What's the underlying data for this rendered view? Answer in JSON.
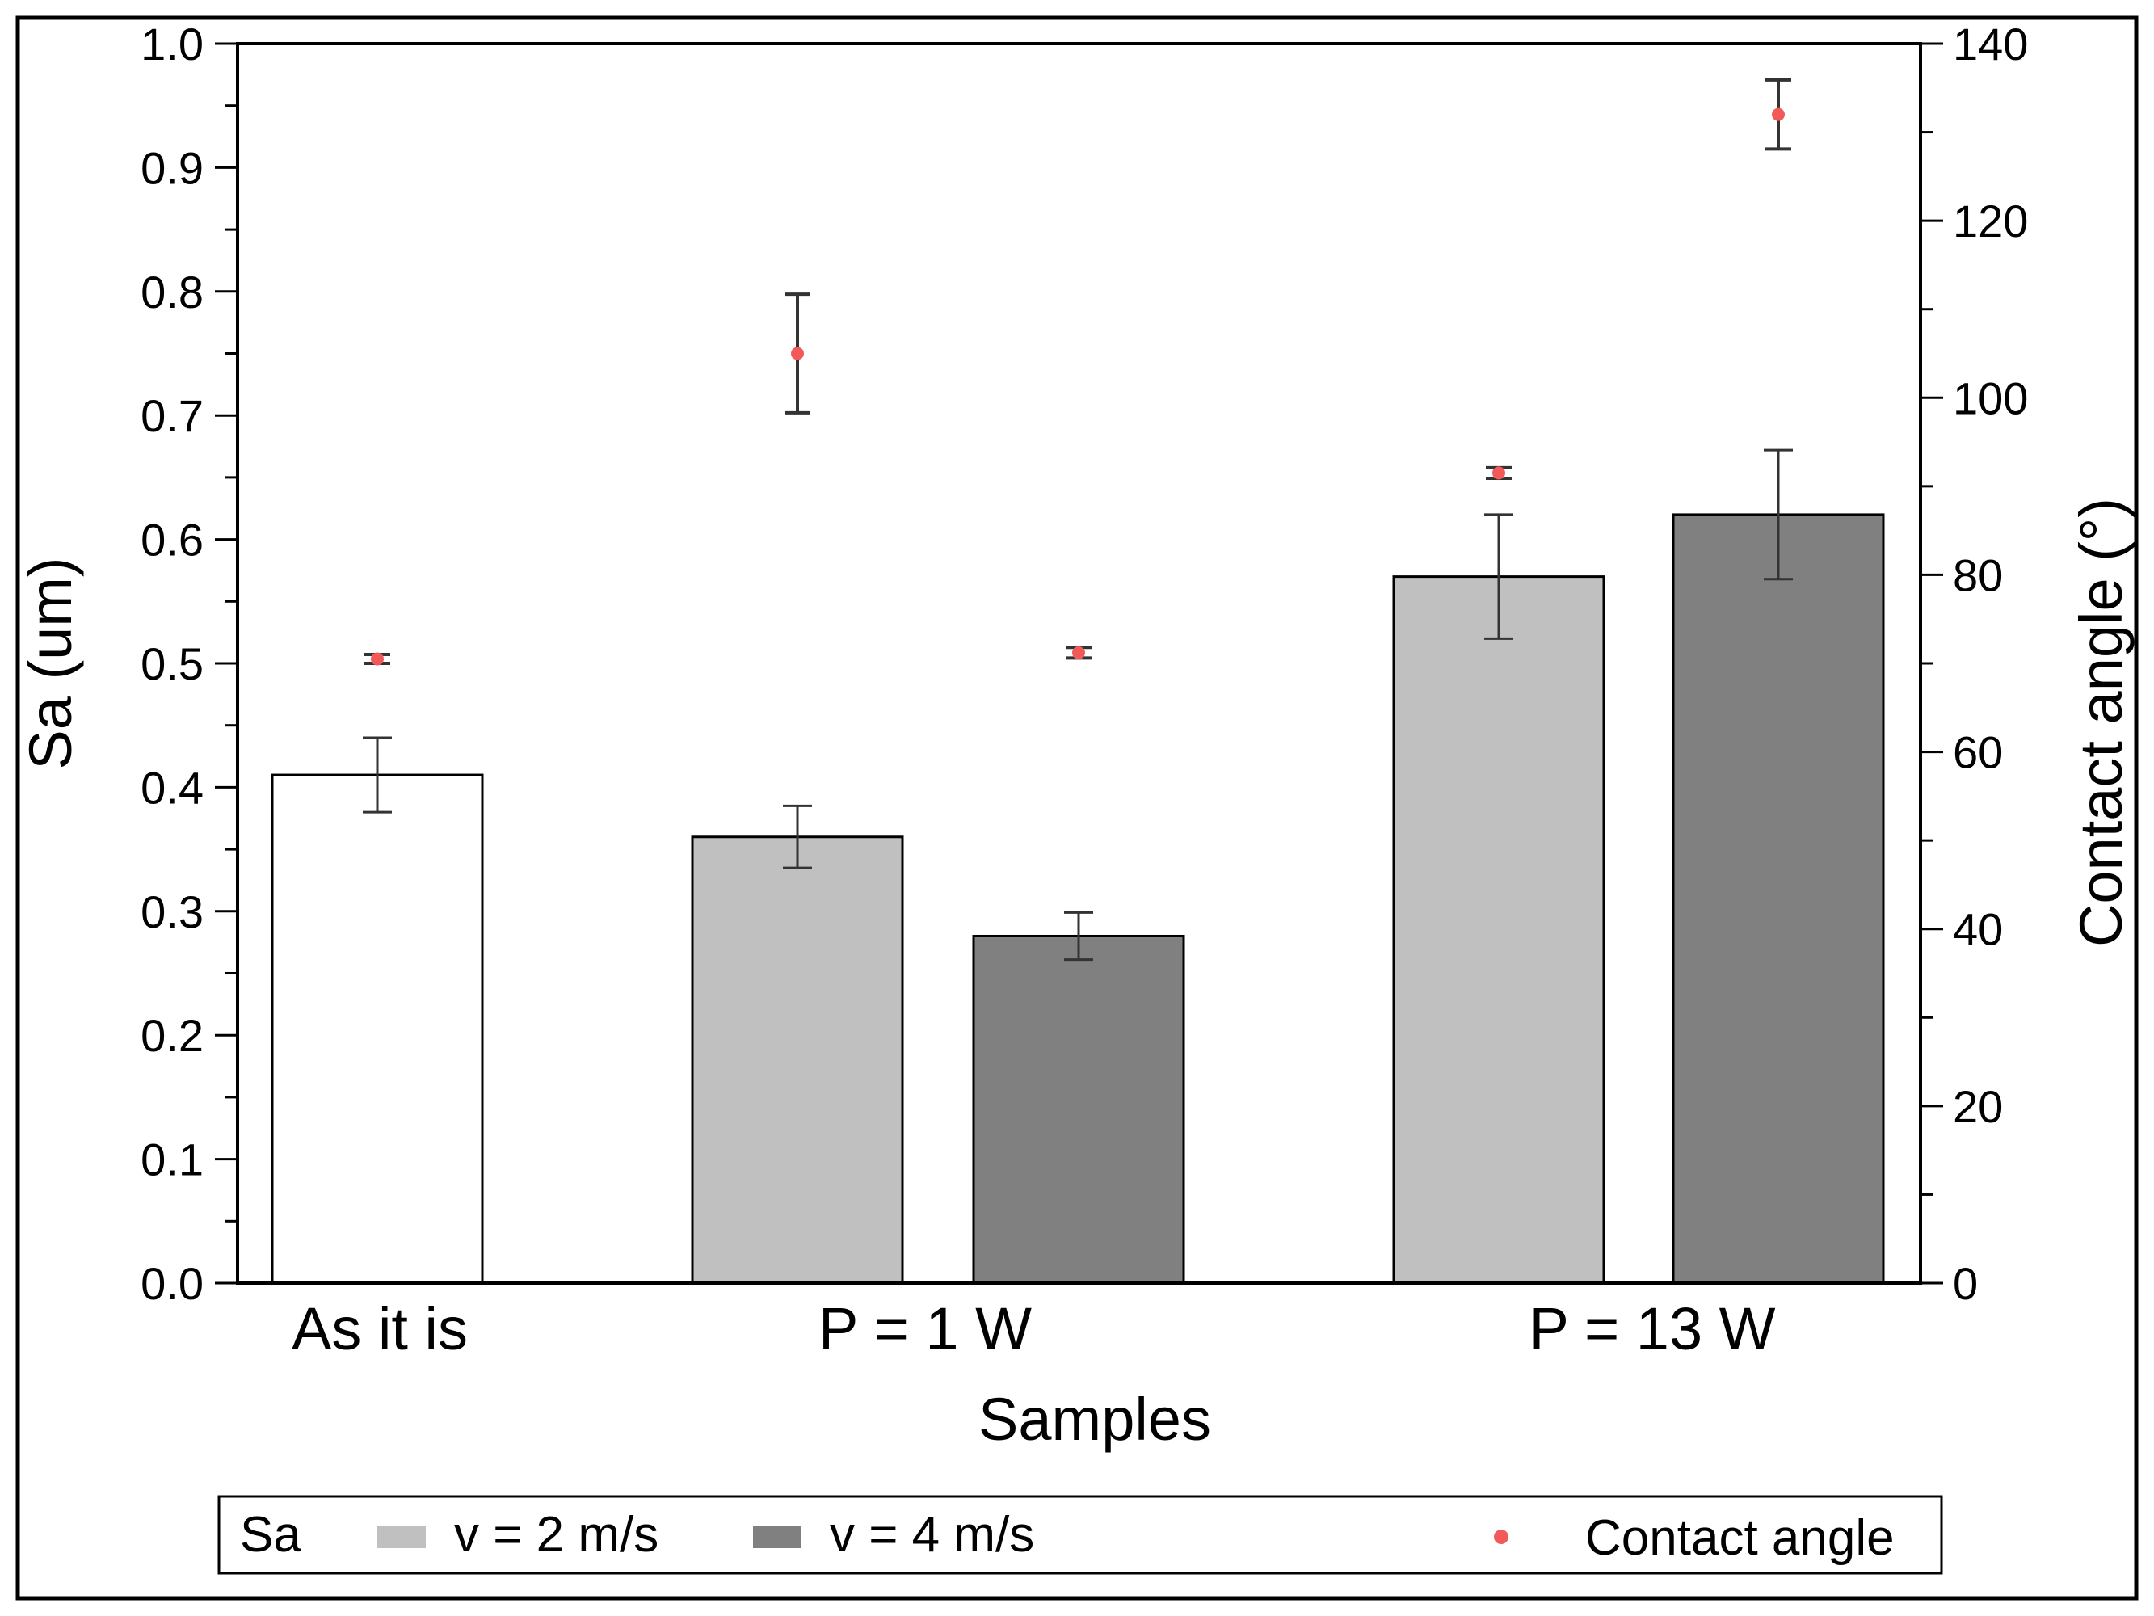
{
  "chart_data": {
    "type": "bar",
    "xlabel": "Samples",
    "ylabel": "Sa (um)",
    "y2label": "Contact angle (°)",
    "categories": [
      "As it is",
      "P = 1 W",
      "P = 13 W"
    ],
    "ylim": [
      0,
      1.0
    ],
    "y2lim": [
      0,
      140
    ],
    "yticks": [
      "0.0",
      "0.1",
      "0.2",
      "0.3",
      "0.4",
      "0.5",
      "0.6",
      "0.7",
      "0.8",
      "0.9",
      "1.0"
    ],
    "y2ticks": [
      "0",
      "20",
      "40",
      "60",
      "80",
      "100",
      "120",
      "140"
    ],
    "grid": false,
    "legend_position": "bottom",
    "legend": {
      "group_label": "Sa",
      "entries": [
        "v = 2 m/s",
        "v = 4 m/s",
        "Contact angle"
      ]
    },
    "colors": {
      "as_it_is": "#ffffff",
      "v2": "#c0c0c0",
      "v4": "#808080",
      "contact_angle": "#f25a5a",
      "error_bar": "#333333"
    },
    "series": [
      {
        "name": "As it is",
        "category": "As it is",
        "sa": 0.41,
        "sa_err": 0.03,
        "contact_angle": 70.5,
        "contact_angle_err": 0.5
      },
      {
        "name": "v = 2 m/s",
        "category": "P = 1 W",
        "sa": 0.36,
        "sa_err": 0.025,
        "contact_angle": 105,
        "contact_angle_err": 6.7
      },
      {
        "name": "v = 4 m/s",
        "category": "P = 1 W",
        "sa": 0.28,
        "sa_err": 0.019,
        "contact_angle": 71.2,
        "contact_angle_err": 0.6
      },
      {
        "name": "v = 2 m/s",
        "category": "P = 13 W",
        "sa": 0.57,
        "sa_err": 0.05,
        "contact_angle": 91.5,
        "contact_angle_err": 0.6
      },
      {
        "name": "v = 4 m/s",
        "category": "P = 13 W",
        "sa": 0.62,
        "sa_err": 0.052,
        "contact_angle": 132,
        "contact_angle_err": 3.9
      }
    ]
  }
}
